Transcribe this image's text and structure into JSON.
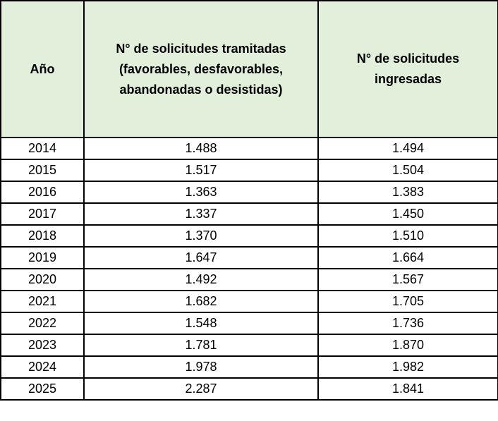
{
  "table": {
    "headers": {
      "year": "Año",
      "processed": [
        "N° de solicitudes tramitadas",
        "(favorables, desfavorables,",
        "abandonadas o desistidas)"
      ],
      "received": [
        "N° de solicitudes",
        "ingresadas"
      ]
    },
    "rows": [
      {
        "year": "2014",
        "processed": "1.488",
        "received": "1.494"
      },
      {
        "year": "2015",
        "processed": "1.517",
        "received": "1.504"
      },
      {
        "year": "2016",
        "processed": "1.363",
        "received": "1.383"
      },
      {
        "year": "2017",
        "processed": "1.337",
        "received": "1.450"
      },
      {
        "year": "2018",
        "processed": "1.370",
        "received": "1.510"
      },
      {
        "year": "2019",
        "processed": "1.647",
        "received": "1.664"
      },
      {
        "year": "2020",
        "processed": "1.492",
        "received": "1.567"
      },
      {
        "year": "2021",
        "processed": "1.682",
        "received": "1.705"
      },
      {
        "year": "2022",
        "processed": "1.548",
        "received": "1.736"
      },
      {
        "year": "2023",
        "processed": "1.781",
        "received": "1.870"
      },
      {
        "year": "2024",
        "processed": "1.978",
        "received": "1.982"
      },
      {
        "year": "2025",
        "processed": "2.287",
        "received": "1.841"
      }
    ]
  }
}
